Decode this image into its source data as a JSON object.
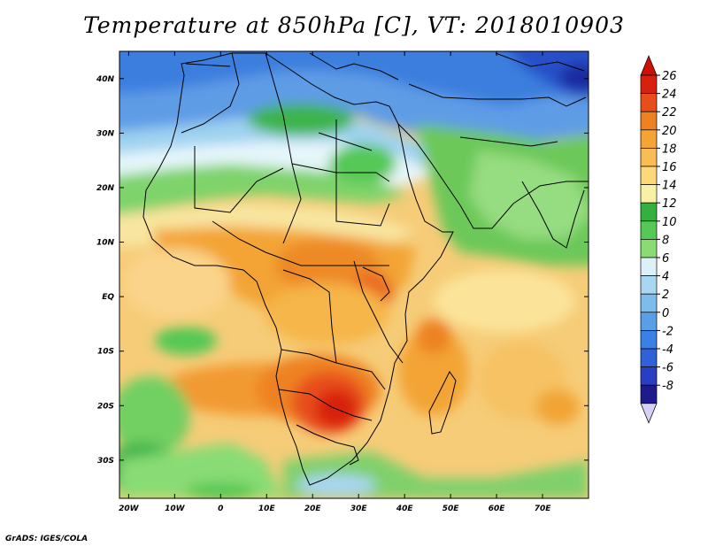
{
  "title": "Temperature at 850hPa [C], VT: 2018010903",
  "credit": "GrADS: IGES/COLA",
  "map": {
    "region": "Africa",
    "variable": "Temperature at 850hPa",
    "units": "C",
    "valid_time": "2018010903",
    "lon_range": [
      -22,
      80
    ],
    "lat_range": [
      -37,
      45
    ],
    "lon_ticks": [
      {
        "value": -20,
        "label": "20W"
      },
      {
        "value": -10,
        "label": "10W"
      },
      {
        "value": 0,
        "label": "0"
      },
      {
        "value": 10,
        "label": "10E"
      },
      {
        "value": 20,
        "label": "20E"
      },
      {
        "value": 30,
        "label": "30E"
      },
      {
        "value": 40,
        "label": "40E"
      },
      {
        "value": 50,
        "label": "50E"
      },
      {
        "value": 60,
        "label": "60E"
      },
      {
        "value": 70,
        "label": "70E"
      }
    ],
    "lat_ticks": [
      {
        "value": 40,
        "label": "40N"
      },
      {
        "value": 30,
        "label": "30N"
      },
      {
        "value": 20,
        "label": "20N"
      },
      {
        "value": 10,
        "label": "10N"
      },
      {
        "value": 0,
        "label": "EQ"
      },
      {
        "value": -10,
        "label": "10S"
      },
      {
        "value": -20,
        "label": "20S"
      },
      {
        "value": -30,
        "label": "30S"
      }
    ]
  },
  "colorbar": {
    "levels": [
      -8,
      -6,
      -4,
      -2,
      0,
      2,
      4,
      6,
      8,
      10,
      12,
      14,
      16,
      18,
      20,
      22,
      24,
      26
    ],
    "labels": [
      "26",
      "24",
      "22",
      "20",
      "18",
      "16",
      "14",
      "12",
      "10",
      "8",
      "6",
      "4",
      "2",
      "0",
      "-2",
      "-4",
      "-6",
      "-8"
    ],
    "colors": [
      "#1e1b8c",
      "#2a3ec4",
      "#2f62d8",
      "#3b80e4",
      "#5a9ee8",
      "#7fbcee",
      "#aad6f2",
      "#dcf0f8",
      "#89dc74",
      "#55c855",
      "#33b040",
      "#f8f0a4",
      "#fcd87a",
      "#f8be55",
      "#f3a434",
      "#ee8222",
      "#e84e1c",
      "#d8200e"
    ],
    "under_color": "#d6d0f4",
    "over_color": "#cc1008"
  }
}
